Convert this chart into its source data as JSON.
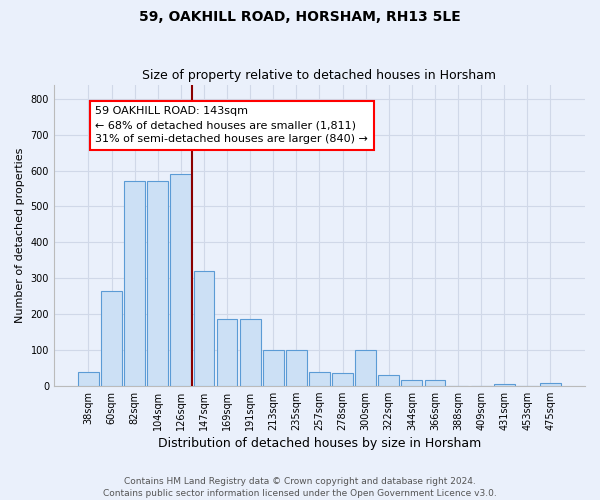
{
  "title": "59, OAKHILL ROAD, HORSHAM, RH13 5LE",
  "subtitle": "Size of property relative to detached houses in Horsham",
  "xlabel": "Distribution of detached houses by size in Horsham",
  "ylabel": "Number of detached properties",
  "bar_labels": [
    "38sqm",
    "60sqm",
    "82sqm",
    "104sqm",
    "126sqm",
    "147sqm",
    "169sqm",
    "191sqm",
    "213sqm",
    "235sqm",
    "257sqm",
    "278sqm",
    "300sqm",
    "322sqm",
    "344sqm",
    "366sqm",
    "388sqm",
    "409sqm",
    "431sqm",
    "453sqm",
    "475sqm"
  ],
  "bar_values": [
    38,
    265,
    570,
    570,
    590,
    320,
    185,
    185,
    100,
    100,
    38,
    35,
    100,
    30,
    15,
    15,
    0,
    0,
    5,
    0,
    7
  ],
  "bar_color": "#cce0f5",
  "bar_edge_color": "#5b9bd5",
  "vline_x": 4.5,
  "annotation_text_line1": "59 OAKHILL ROAD: 143sqm",
  "annotation_text_line2": "← 68% of detached houses are smaller (1,811)",
  "annotation_text_line3": "31% of semi-detached houses are larger (840) →",
  "annotation_box_color": "white",
  "annotation_box_edge_color": "red",
  "vline_color": "#8b0000",
  "ylim": [
    0,
    840
  ],
  "yticks": [
    0,
    100,
    200,
    300,
    400,
    500,
    600,
    700,
    800
  ],
  "footer": "Contains HM Land Registry data © Crown copyright and database right 2024.\nContains public sector information licensed under the Open Government Licence v3.0.",
  "bg_color": "#eaf0fb",
  "plot_bg_color": "#eaf0fb",
  "grid_color": "#d0d8e8",
  "title_fontsize": 10,
  "subtitle_fontsize": 9,
  "xlabel_fontsize": 9,
  "tick_fontsize": 7,
  "ylabel_fontsize": 8,
  "annotation_fontsize": 8
}
